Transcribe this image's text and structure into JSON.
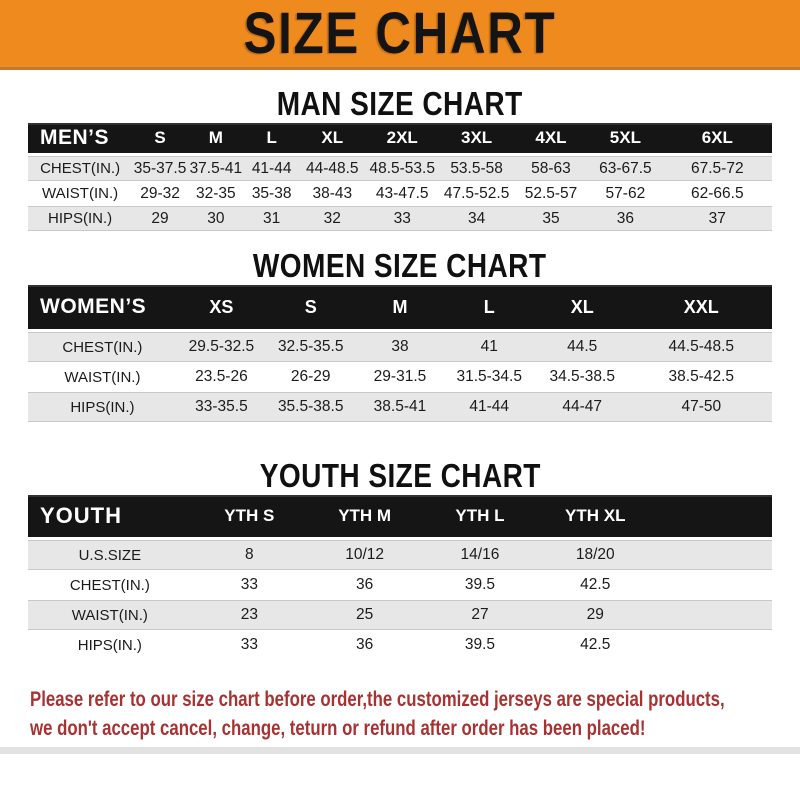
{
  "banner": {
    "title": "SIZE CHART",
    "bg": "#EE8A1E",
    "fg": "#141414"
  },
  "men": {
    "heading": "MAN SIZE CHART",
    "label": "MEN’S",
    "columns": [
      "S",
      "M",
      "L",
      "XL",
      "2XL",
      "3XL",
      "4XL",
      "5XL",
      "6XL"
    ],
    "rows": [
      {
        "label": "CHEST(IN.)",
        "values": [
          "35-37.5",
          "37.5-41",
          "41-44",
          "44-48.5",
          "48.5-53.5",
          "53.5-58",
          "58-63",
          "63-67.5",
          "67.5-72"
        ]
      },
      {
        "label": "WAIST(IN.)",
        "values": [
          "29-32",
          "32-35",
          "35-38",
          "38-43",
          "43-47.5",
          "47.5-52.5",
          "52.5-57",
          "57-62",
          "62-66.5"
        ]
      },
      {
        "label": "HIPS(IN.)",
        "values": [
          "29",
          "30",
          "31",
          "32",
          "33",
          "34",
          "35",
          "36",
          "37"
        ]
      }
    ]
  },
  "women": {
    "heading": "WOMEN SIZE CHART",
    "label": "WOMEN’S",
    "columns": [
      "XS",
      "S",
      "M",
      "L",
      "XL",
      "XXL"
    ],
    "rows": [
      {
        "label": "CHEST(IN.)",
        "values": [
          "29.5-32.5",
          "32.5-35.5",
          "38",
          "41",
          "44.5",
          "44.5-48.5"
        ]
      },
      {
        "label": "WAIST(IN.)",
        "values": [
          "23.5-26",
          "26-29",
          "29-31.5",
          "31.5-34.5",
          "34.5-38.5",
          "38.5-42.5"
        ]
      },
      {
        "label": "HIPS(IN.)",
        "values": [
          "33-35.5",
          "35.5-38.5",
          "38.5-41",
          "41-44",
          "44-47",
          "47-50"
        ]
      }
    ]
  },
  "youth": {
    "heading": "YOUTH SIZE CHART",
    "label": "YOUTH",
    "columns": [
      "YTH S",
      "YTH M",
      "YTH L",
      "YTH XL"
    ],
    "trailing_spacer": true,
    "rows": [
      {
        "label": "U.S.SIZE",
        "values": [
          "8",
          "10/12",
          "14/16",
          "18/20"
        ]
      },
      {
        "label": "CHEST(IN.)",
        "values": [
          "33",
          "36",
          "39.5",
          "42.5"
        ]
      },
      {
        "label": "WAIST(IN.)",
        "values": [
          "23",
          "25",
          "27",
          "29"
        ]
      },
      {
        "label": "HIPS(IN.)",
        "values": [
          "33",
          "36",
          "39.5",
          "42.5"
        ]
      }
    ]
  },
  "footer": {
    "color": "#A63332",
    "lines": [
      "Please refer to our size chart before order,the customized jerseys are special products,",
      "we don't accept cancel, change, teturn or refund after order has been placed!"
    ]
  }
}
